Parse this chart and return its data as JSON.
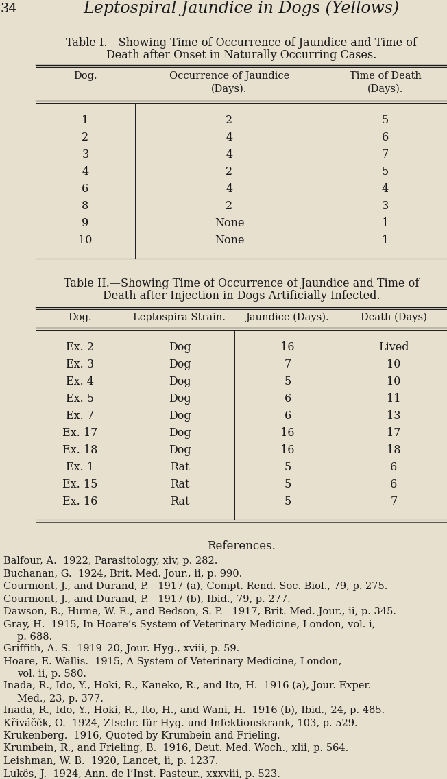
{
  "bg_color": "#e8e0cf",
  "text_color": "#1a1a1a",
  "page_num": "34",
  "page_title": "Leptospiral Jaundice in Dogs (Yellows)",
  "table1_title_line1": "Table I.—Showing Time of Occurrence of Jaundice and Time of",
  "table1_title_line2": "Death after Onset in Naturally Occurring Cases.",
  "table1_col_headers": [
    "Dog.",
    "Occurrence of Jaundice\n(Days).",
    "Time of Death\n(Days)."
  ],
  "table1_data": [
    [
      "1",
      "2",
      "5"
    ],
    [
      "2",
      "4",
      "6"
    ],
    [
      "3",
      "4",
      "7"
    ],
    [
      "4",
      "2",
      "5"
    ],
    [
      "6",
      "4",
      "4"
    ],
    [
      "8",
      "2",
      "3"
    ],
    [
      "9",
      "None",
      "1"
    ],
    [
      "10",
      "None",
      "1"
    ]
  ],
  "table2_title_line1": "Table II.—Showing Time of Occurrence of Jaundice and Time of",
  "table2_title_line2": "Death after Injection in Dogs Artificially Infected.",
  "table2_col_headers": [
    "Dog.",
    "Leptospira Strain.",
    "Jaundice (Days).",
    "Death (Days)"
  ],
  "table2_data": [
    [
      "Ex. 2",
      "Dog",
      "16",
      "Lived"
    ],
    [
      "Ex. 3",
      "Dog",
      "7",
      "10"
    ],
    [
      "Ex. 4",
      "Dog",
      "5",
      "10"
    ],
    [
      "Ex. 5",
      "Dog",
      "6",
      "11"
    ],
    [
      "Ex. 7",
      "Dog",
      "6",
      "13"
    ],
    [
      "Ex. 17",
      "Dog",
      "16",
      "17"
    ],
    [
      "Ex. 18",
      "Dog",
      "16",
      "18"
    ],
    [
      "Ex. 1",
      "Rat",
      "5",
      "6"
    ],
    [
      "Ex. 15",
      "Rat",
      "5",
      "6"
    ],
    [
      "Ex. 16",
      "Rat",
      "5",
      "7"
    ]
  ],
  "references_title": "References.",
  "references": [
    [
      "Balfour",
      ", A.  1922, Parasitology, xiv, p. 282."
    ],
    [
      "Buchanan",
      ", G.  1924, Brit. Med. Jour., ii, p. 990."
    ],
    [
      "Courmont",
      ", J., and Durand, P.   1917 (a), Compt. Rend. Soc. Biol., 79, p. 275."
    ],
    [
      "Courmont",
      ", J., and Durand, P.   1917 (b), Ibid., 79, p. 277."
    ],
    [
      "Dawson",
      ", B., Hume, W. E., and Bedson, S. P.   1917, Brit. Med. Jour., ii, p. 345."
    ],
    [
      "Gray",
      ", H.  1915, In Hoare’s System of Veterinary Medicine, London, vol. i,",
      "    p. 688."
    ],
    [
      "Griffith",
      ", A. S.  1919–20, Jour. Hyg., xviii, p. 59."
    ],
    [
      "Hoare",
      ", E. Wallis.  1915, A System of Veterinary Medicine, London,",
      "    vol. ii, p. 580."
    ],
    [
      "Inada",
      ", R., Ido, Y., Hoki, R., Kaneko, R., and Ito, H.  1916 (a), Jour. Exper.",
      "    Med., 23, p. 377."
    ],
    [
      "Inada",
      ", R., Ido, Y., Hoki, R., Ito, H., and Wani, H.  1916 (b), Ibid., 24, p. 485."
    ],
    [
      "Křiváčěk",
      ", O.  1924, Ztschr. für Hyg. und Infektionskrank, 103, p. 529."
    ],
    [
      "Krukenberg",
      ".  1916, Quoted by Krumbein and Frieling."
    ],
    [
      "Krumbein",
      ", R., and Frieling, B.  1916, Deut. Med. Woch., xlii, p. 564."
    ],
    [
      "Leishman",
      ", W. B.  1920, Lancet, ii, p. 1237."
    ],
    [
      "Lukês",
      ", J.  1924, Ann. de l’Inst. Pasteur., xxxviii, p. 523."
    ]
  ]
}
